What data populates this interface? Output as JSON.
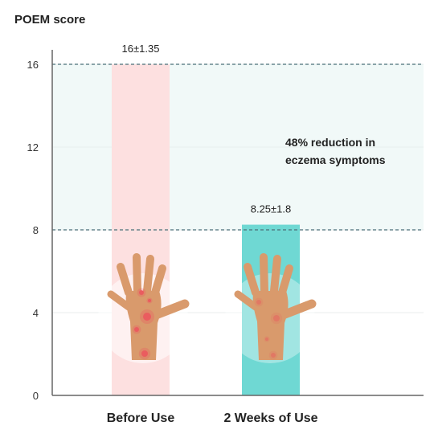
{
  "chart_data": {
    "type": "bar",
    "title": "POEM score",
    "categories": [
      "Before Use",
      "2 Weeks of Use"
    ],
    "values": [
      16,
      8.25
    ],
    "value_labels": [
      "16±1.35",
      "8.25±1.8"
    ],
    "ylim": [
      0,
      16
    ],
    "yticks": [
      "0",
      "4",
      "8",
      "12",
      "16"
    ],
    "grid": true,
    "reference_lines": [
      16,
      8
    ],
    "shaded_band": [
      8,
      16
    ],
    "annotation": [
      "48% reduction in",
      "eczema symptoms"
    ],
    "colors": {
      "before": "#fde0e0",
      "after": "#6fd8d3",
      "band": "#f1f9f8",
      "dashed": "#4a6f78",
      "skin": "#d99a6c",
      "spot": "#ee4d5c"
    }
  }
}
